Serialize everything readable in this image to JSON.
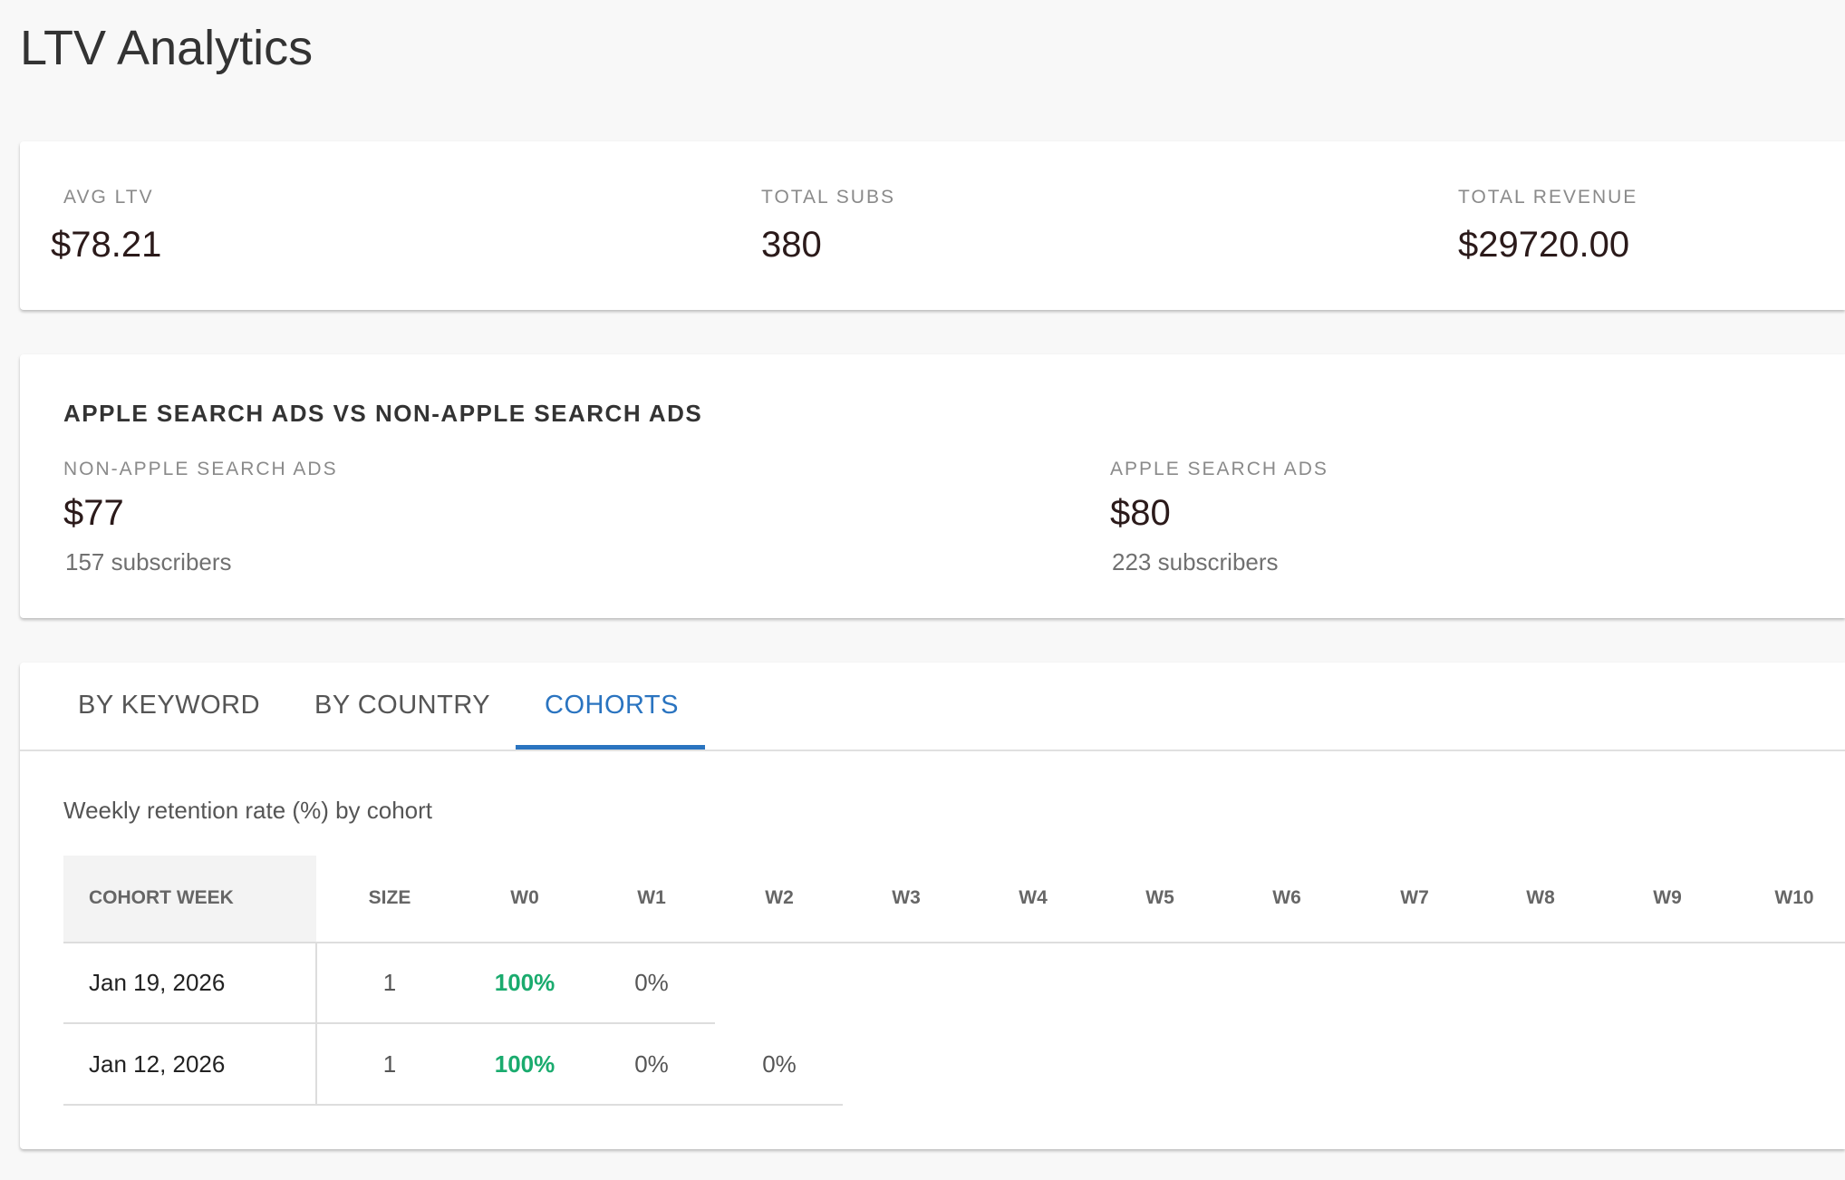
{
  "header": {
    "title": "LTV Analytics"
  },
  "summary": [
    {
      "label": "AVG LTV",
      "value": "$78.21"
    },
    {
      "label": "TOTAL SUBS",
      "value": "380"
    },
    {
      "label": "TOTAL REVENUE",
      "value": "$29720.00"
    }
  ],
  "comparison": {
    "title": "APPLE SEARCH ADS VS NON-APPLE SEARCH ADS",
    "groups": [
      {
        "label": "NON-APPLE SEARCH ADS",
        "value": "$77",
        "subscribers": "157 subscribers"
      },
      {
        "label": "APPLE SEARCH ADS",
        "value": "$80",
        "subscribers": "223 subscribers"
      }
    ]
  },
  "tabs": {
    "items": [
      "BY KEYWORD",
      "BY COUNTRY",
      "COHORTS"
    ],
    "active": 2
  },
  "cohorts": {
    "caption": "Weekly retention rate (%) by cohort",
    "table": {
      "columns": [
        "COHORT WEEK",
        "SIZE",
        "W0",
        "W1",
        "W2",
        "W3",
        "W4",
        "W5",
        "W6",
        "W7",
        "W8",
        "W9",
        "W10"
      ],
      "rows": [
        [
          "Jan 19, 2026",
          "1",
          "100%",
          "0%"
        ],
        [
          "Jan 12, 2026",
          "1",
          "100%",
          "0%",
          "0%"
        ]
      ]
    }
  }
}
